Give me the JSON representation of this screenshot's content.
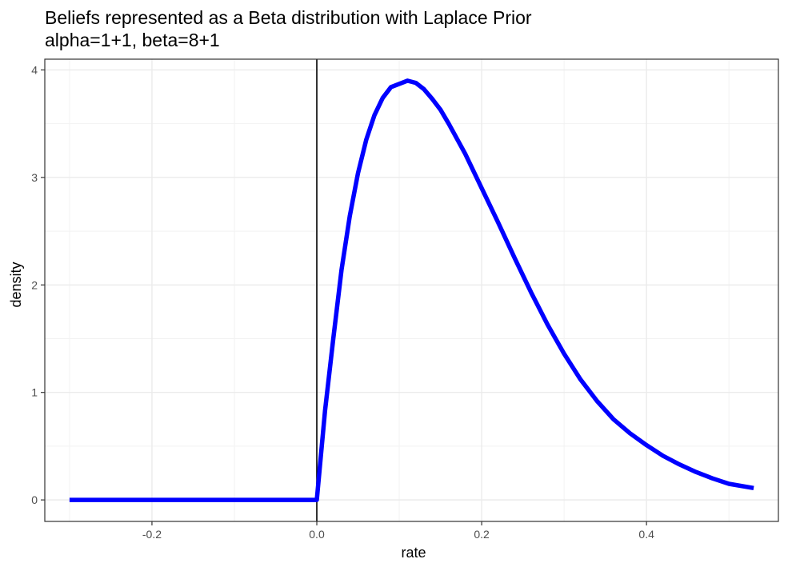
{
  "chart_data": {
    "type": "line",
    "title": "Beliefs represented as a Beta distribution with Laplace Prior",
    "subtitle": "alpha=1+1, beta=8+1",
    "xlabel": "rate",
    "ylabel": "density",
    "xlim": [
      -0.33,
      0.56
    ],
    "ylim": [
      -0.2,
      4.1
    ],
    "x_ticks": [
      -0.2,
      0.0,
      0.2,
      0.4
    ],
    "x_tick_labels": [
      "-0.2",
      "0.0",
      "0.2",
      "0.4"
    ],
    "y_ticks": [
      0,
      1,
      2,
      3,
      4
    ],
    "y_tick_labels": [
      "0",
      "1",
      "2",
      "3",
      "4"
    ],
    "grid": true,
    "vline_x": 0,
    "series": [
      {
        "color": "#0000ff",
        "x": [
          -0.3,
          -0.2,
          -0.1,
          0.0,
          0.01,
          0.02,
          0.03,
          0.04,
          0.05,
          0.06,
          0.07,
          0.08,
          0.09,
          0.1,
          0.11,
          0.12,
          0.13,
          0.14,
          0.15,
          0.16,
          0.18,
          0.2,
          0.22,
          0.24,
          0.26,
          0.28,
          0.3,
          0.32,
          0.34,
          0.36,
          0.38,
          0.4,
          0.42,
          0.44,
          0.46,
          0.48,
          0.5,
          0.53
        ],
        "y": [
          0,
          0,
          0,
          0,
          0.83,
          1.5,
          2.14,
          2.64,
          3.04,
          3.35,
          3.58,
          3.74,
          3.84,
          3.87,
          3.9,
          3.88,
          3.82,
          3.73,
          3.63,
          3.5,
          3.22,
          2.9,
          2.58,
          2.25,
          1.93,
          1.63,
          1.36,
          1.12,
          0.92,
          0.75,
          0.62,
          0.51,
          0.41,
          0.33,
          0.26,
          0.2,
          0.15,
          0.11
        ]
      }
    ]
  }
}
